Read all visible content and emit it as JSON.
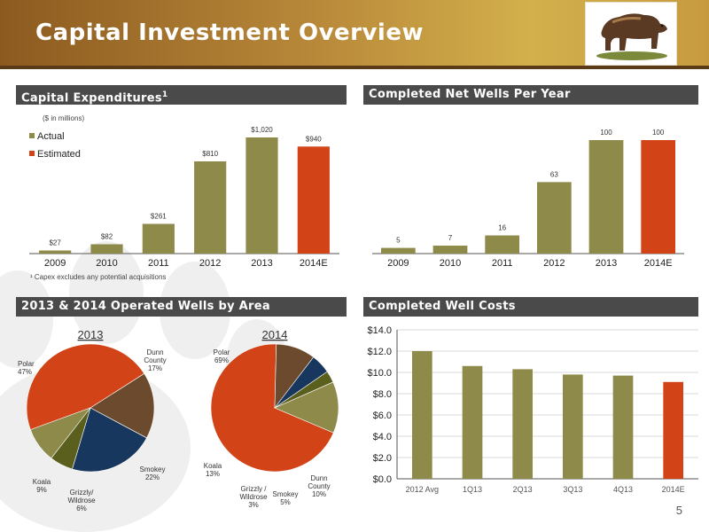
{
  "header": {
    "title": "Capital Investment Overview",
    "logo_icon": "grizzly-bear-logo"
  },
  "sections": {
    "capex_title": "Capital Expenditures",
    "capex_superscript": "1",
    "wells_title": "Completed Net Wells Per Year",
    "area_title": "2013 & 2014 Operated Wells by Area",
    "costs_title": "Completed Well Costs"
  },
  "page_number": "5",
  "colors": {
    "actual": "#8d8a4a",
    "estimated": "#d24417",
    "header_bg": "#4a4a4a",
    "polar": "#d24417",
    "dunn": "#6b4a2e",
    "smokey": "#17375e",
    "grizzly": "#5a5f1e",
    "koala": "#8d8a4a"
  },
  "chart_data": [
    {
      "type": "bar",
      "title": "Capital Expenditures",
      "unit_note": "($ in millions)",
      "footnote": "¹ Capex excludes any potential acquisitions",
      "categories": [
        "2009",
        "2010",
        "2011",
        "2012",
        "2013",
        "2014E"
      ],
      "values": [
        27,
        82,
        261,
        810,
        1020,
        940
      ],
      "value_labels": [
        "$27",
        "$82",
        "$261",
        "$810",
        "$1,020",
        "$940"
      ],
      "estimated_index": 5,
      "legend": [
        "Actual",
        "Estimated"
      ],
      "ylim": [
        0,
        1020
      ]
    },
    {
      "type": "bar",
      "title": "Completed Net Wells Per Year",
      "categories": [
        "2009",
        "2010",
        "2011",
        "2012",
        "2013",
        "2014E"
      ],
      "values": [
        5,
        7,
        16,
        63,
        100,
        100
      ],
      "value_labels": [
        "5",
        "7",
        "16",
        "63",
        "100",
        "100"
      ],
      "estimated_index": 5,
      "ylim": [
        0,
        100
      ]
    },
    {
      "type": "pie",
      "title": "2013",
      "slices": [
        {
          "name": "Polar",
          "value": 47,
          "label": "47%",
          "color": "#d24417"
        },
        {
          "name": "Dunn County",
          "value": 17,
          "label": "17%",
          "color": "#6b4a2e"
        },
        {
          "name": "Smokey",
          "value": 22,
          "label": "22%",
          "color": "#17375e"
        },
        {
          "name": "Grizzly/ Wildrose",
          "value": 6,
          "label": "6%",
          "color": "#5a5f1e"
        },
        {
          "name": "Koala",
          "value": 9,
          "label": "9%",
          "color": "#8d8a4a"
        }
      ]
    },
    {
      "type": "pie",
      "title": "2014",
      "slices": [
        {
          "name": "Polar",
          "value": 69,
          "label": "69%",
          "color": "#d24417"
        },
        {
          "name": "Dunn County",
          "value": 10,
          "label": "10%",
          "color": "#6b4a2e"
        },
        {
          "name": "Smokey",
          "value": 5,
          "label": "5%",
          "color": "#17375e"
        },
        {
          "name": "Grizzly / Wildrose",
          "value": 3,
          "label": "3%",
          "color": "#5a5f1e"
        },
        {
          "name": "Koala",
          "value": 13,
          "label": "13%",
          "color": "#8d8a4a"
        }
      ]
    },
    {
      "type": "bar",
      "title": "Completed Well Costs",
      "categories": [
        "2012 Avg",
        "1Q13",
        "2Q13",
        "3Q13",
        "4Q13",
        "2014E"
      ],
      "values": [
        12.0,
        10.6,
        10.3,
        9.8,
        9.7,
        9.1
      ],
      "estimated_index": 5,
      "yticks": [
        "$0.0",
        "$2.0",
        "$4.0",
        "$6.0",
        "$8.0",
        "$10.0",
        "$12.0",
        "$14.0"
      ],
      "ylim": [
        0,
        14
      ],
      "grid": true
    }
  ]
}
